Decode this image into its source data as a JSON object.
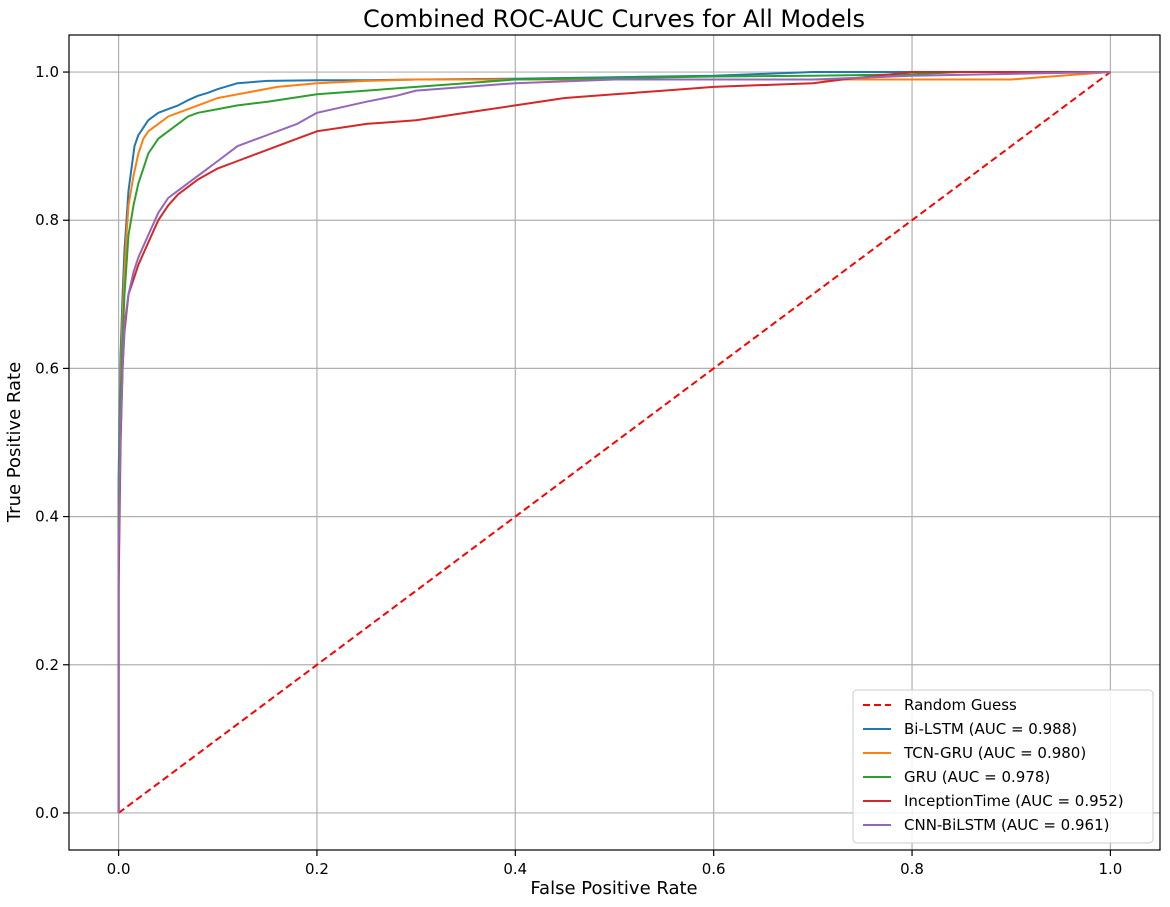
{
  "chart_data": {
    "type": "line",
    "title": "Combined ROC-AUC Curves for All Models",
    "xlabel": "False Positive Rate",
    "ylabel": "True Positive Rate",
    "xlim": [
      -0.05,
      1.05
    ],
    "ylim": [
      -0.05,
      1.05
    ],
    "xticks": [
      0.0,
      0.2,
      0.4,
      0.6,
      0.8,
      1.0
    ],
    "yticks": [
      0.0,
      0.2,
      0.4,
      0.6,
      0.8,
      1.0
    ],
    "xtick_labels": [
      "0.0",
      "0.2",
      "0.4",
      "0.6",
      "0.8",
      "1.0"
    ],
    "ytick_labels": [
      "0.0",
      "0.2",
      "0.4",
      "0.6",
      "0.8",
      "1.0"
    ],
    "grid": true,
    "legend_position": "lower-right",
    "series": [
      {
        "name": "Random Guess",
        "color": "#ff0000",
        "style": "dashed",
        "x": [
          0.0,
          1.0
        ],
        "y": [
          0.0,
          1.0
        ]
      },
      {
        "name": "Bi-LSTM (AUC = 0.988)",
        "color": "#1f77b4",
        "style": "solid",
        "x": [
          0.0,
          0.0,
          0.002,
          0.004,
          0.006,
          0.008,
          0.01,
          0.013,
          0.016,
          0.02,
          0.025,
          0.03,
          0.04,
          0.05,
          0.06,
          0.07,
          0.08,
          0.09,
          0.1,
          0.12,
          0.15,
          0.2,
          0.25,
          0.3,
          0.4,
          0.5,
          0.6,
          0.7,
          0.8,
          0.9,
          1.0
        ],
        "y": [
          0.0,
          0.45,
          0.62,
          0.7,
          0.76,
          0.8,
          0.84,
          0.87,
          0.9,
          0.915,
          0.925,
          0.935,
          0.945,
          0.95,
          0.955,
          0.962,
          0.968,
          0.972,
          0.977,
          0.985,
          0.988,
          0.989,
          0.989,
          0.99,
          0.991,
          0.993,
          0.995,
          1.0,
          1.0,
          1.0,
          1.0
        ]
      },
      {
        "name": "TCN-GRU (AUC = 0.980)",
        "color": "#ff7f0e",
        "style": "solid",
        "x": [
          0.0,
          0.0,
          0.002,
          0.004,
          0.006,
          0.008,
          0.01,
          0.015,
          0.02,
          0.025,
          0.03,
          0.04,
          0.05,
          0.06,
          0.08,
          0.1,
          0.12,
          0.14,
          0.16,
          0.2,
          0.25,
          0.3,
          0.4,
          0.5,
          0.6,
          0.7,
          0.8,
          0.9,
          0.95,
          1.0
        ],
        "y": [
          0.0,
          0.4,
          0.58,
          0.67,
          0.73,
          0.78,
          0.82,
          0.86,
          0.89,
          0.91,
          0.92,
          0.93,
          0.94,
          0.945,
          0.955,
          0.965,
          0.97,
          0.975,
          0.98,
          0.985,
          0.988,
          0.99,
          0.99,
          0.99,
          0.99,
          0.99,
          0.99,
          0.99,
          0.995,
          1.0
        ]
      },
      {
        "name": "GRU (AUC = 0.978)",
        "color": "#2ca02c",
        "style": "solid",
        "x": [
          0.0,
          0.0,
          0.002,
          0.004,
          0.006,
          0.008,
          0.01,
          0.015,
          0.02,
          0.025,
          0.03,
          0.04,
          0.05,
          0.06,
          0.07,
          0.08,
          0.1,
          0.12,
          0.15,
          0.2,
          0.25,
          0.3,
          0.35,
          0.4,
          0.5,
          0.6,
          0.7,
          0.8,
          0.85,
          1.0
        ],
        "y": [
          0.0,
          0.4,
          0.56,
          0.64,
          0.7,
          0.74,
          0.78,
          0.82,
          0.85,
          0.87,
          0.89,
          0.91,
          0.92,
          0.93,
          0.94,
          0.945,
          0.95,
          0.955,
          0.96,
          0.97,
          0.975,
          0.98,
          0.985,
          0.99,
          0.992,
          0.994,
          0.995,
          0.997,
          1.0,
          1.0
        ]
      },
      {
        "name": "InceptionTime (AUC = 0.952)",
        "color": "#d62728",
        "style": "solid",
        "x": [
          0.0,
          0.0,
          0.002,
          0.004,
          0.006,
          0.01,
          0.015,
          0.02,
          0.03,
          0.04,
          0.05,
          0.06,
          0.07,
          0.08,
          0.1,
          0.12,
          0.15,
          0.18,
          0.2,
          0.25,
          0.3,
          0.35,
          0.4,
          0.45,
          0.5,
          0.55,
          0.6,
          0.7,
          0.73,
          0.8,
          1.0
        ],
        "y": [
          0.0,
          0.3,
          0.5,
          0.6,
          0.65,
          0.7,
          0.72,
          0.74,
          0.77,
          0.8,
          0.82,
          0.835,
          0.845,
          0.855,
          0.87,
          0.88,
          0.895,
          0.91,
          0.92,
          0.93,
          0.935,
          0.945,
          0.955,
          0.965,
          0.97,
          0.975,
          0.98,
          0.985,
          0.99,
          1.0,
          1.0
        ]
      },
      {
        "name": "CNN-BiLSTM (AUC = 0.961)",
        "color": "#9467bd",
        "style": "solid",
        "x": [
          0.0,
          0.0,
          0.002,
          0.004,
          0.006,
          0.01,
          0.015,
          0.02,
          0.03,
          0.04,
          0.05,
          0.06,
          0.07,
          0.08,
          0.09,
          0.1,
          0.12,
          0.15,
          0.18,
          0.2,
          0.25,
          0.28,
          0.3,
          0.35,
          0.4,
          0.5,
          0.6,
          0.7,
          0.8,
          1.0
        ],
        "y": [
          0.0,
          0.35,
          0.52,
          0.6,
          0.66,
          0.7,
          0.73,
          0.75,
          0.78,
          0.81,
          0.83,
          0.84,
          0.85,
          0.86,
          0.87,
          0.88,
          0.9,
          0.915,
          0.93,
          0.945,
          0.96,
          0.968,
          0.975,
          0.98,
          0.985,
          0.99,
          0.99,
          0.99,
          0.995,
          1.0
        ]
      }
    ]
  }
}
